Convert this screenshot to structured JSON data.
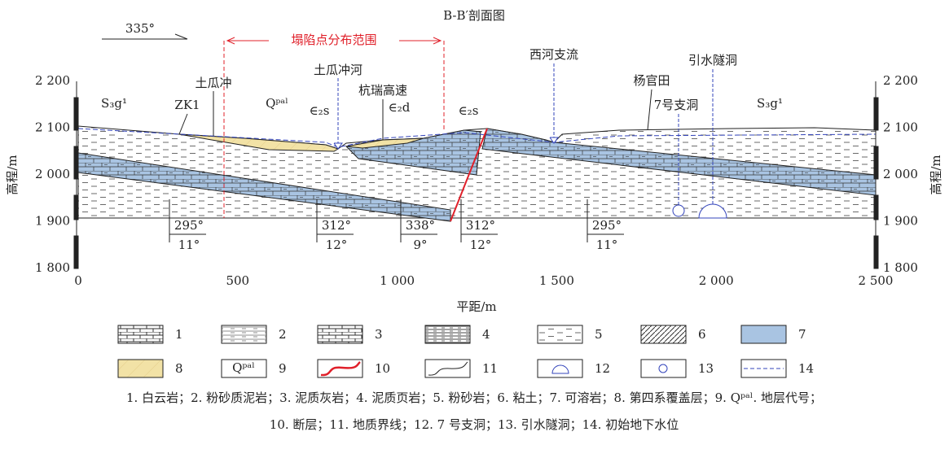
{
  "title": "B-B′剖面图",
  "direction": "335°",
  "collapse_range": "塌陷点分布范围",
  "y_axis": {
    "label": "高程/m",
    "ticks": [
      "2 200",
      "2 100",
      "2 000",
      "1 900",
      "1 800"
    ]
  },
  "x_axis": {
    "label": "平距/m",
    "ticks": [
      "0",
      "500",
      "1 000",
      "1 500",
      "2 000",
      "2 500"
    ]
  },
  "place_labels": [
    "土瓜冲河",
    "西河支流",
    "引水隧洞",
    "土瓜冲",
    "杭瑞高速",
    "杨官田",
    "7号支洞",
    "ZK1"
  ],
  "strata_labels": [
    "S₃g¹",
    "Qᵖᵃˡ",
    "∈₂s",
    "∈₂d",
    "∈₂s",
    "S₃g¹"
  ],
  "attitudes": [
    {
      "dip_direction": "295°",
      "dip_angle": "11°"
    },
    {
      "dip_direction": "312°",
      "dip_angle": "12°"
    },
    {
      "dip_direction": "338°",
      "dip_angle": "9°"
    },
    {
      "dip_direction": "312°",
      "dip_angle": "12°"
    },
    {
      "dip_direction": "295°",
      "dip_angle": "11°"
    }
  ],
  "legend": [
    {
      "number": "1"
    },
    {
      "number": "2"
    },
    {
      "number": "3"
    },
    {
      "number": "4"
    },
    {
      "number": "5"
    },
    {
      "number": "6"
    },
    {
      "number": "7"
    },
    {
      "number": "8"
    },
    {
      "number": "9",
      "symbol": "Qᵖᵃˡ"
    },
    {
      "number": "10"
    },
    {
      "number": "11"
    },
    {
      "number": "12"
    },
    {
      "number": "13"
    },
    {
      "number": "14"
    }
  ],
  "caption": [
    "1. 白云岩；2. 粉砂质泥岩；3. 泥质灰岩；4. 泥质页岩；5. 粉砂岩；6. 粘土；7. 可溶岩；8. 第四系覆盖层；9. Qᵖᵃˡ. 地层代号；",
    "10. 断层；11. 地质界线；12. 7 号支洞；13. 引水隧洞；14. 初始地下水位"
  ]
}
